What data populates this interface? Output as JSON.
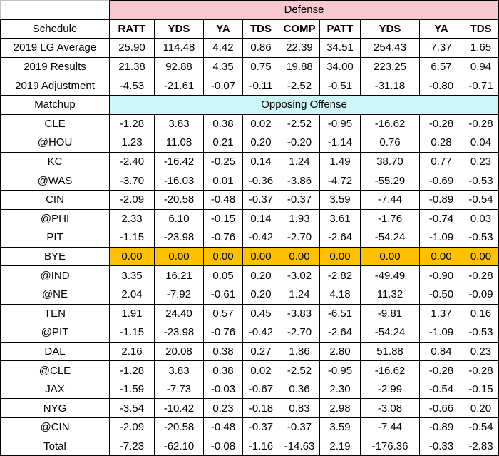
{
  "table": {
    "defense_label": "Defense",
    "schedule_label": "Schedule",
    "matchup_label": "Matchup",
    "opposing_label": "Opposing Offense",
    "columns": [
      "RATT",
      "YDS",
      "YA",
      "TDS",
      "COMP",
      "PATT",
      "YDS",
      "YA",
      "TDS"
    ],
    "summary_rows": [
      {
        "label": "2019 LG Average",
        "values": [
          "25.90",
          "114.48",
          "4.42",
          "0.86",
          "22.39",
          "34.51",
          "254.43",
          "7.37",
          "1.65"
        ]
      },
      {
        "label": "2019 Results",
        "values": [
          "21.38",
          "92.88",
          "4.35",
          "0.75",
          "19.88",
          "34.00",
          "223.25",
          "6.57",
          "0.94"
        ]
      },
      {
        "label": "2019 Adjustment",
        "values": [
          "-4.53",
          "-21.61",
          "-0.07",
          "-0.11",
          "-2.52",
          "-0.51",
          "-31.18",
          "-0.80",
          "-0.71"
        ]
      }
    ],
    "matchups": [
      {
        "label": "CLE",
        "values": [
          "-1.28",
          "3.83",
          "0.38",
          "0.02",
          "-2.52",
          "-0.95",
          "-16.62",
          "-0.28",
          "-0.28"
        ]
      },
      {
        "label": "@HOU",
        "values": [
          "1.23",
          "11.08",
          "0.21",
          "0.20",
          "-0.20",
          "-1.14",
          "0.76",
          "0.28",
          "0.04"
        ]
      },
      {
        "label": "KC",
        "values": [
          "-2.40",
          "-16.42",
          "-0.25",
          "0.14",
          "1.24",
          "1.49",
          "38.70",
          "0.77",
          "0.23"
        ]
      },
      {
        "label": "@WAS",
        "values": [
          "-3.70",
          "-16.03",
          "0.01",
          "-0.36",
          "-3.86",
          "-4.72",
          "-55.29",
          "-0.69",
          "-0.53"
        ]
      },
      {
        "label": "CIN",
        "values": [
          "-2.09",
          "-20.58",
          "-0.48",
          "-0.37",
          "-0.37",
          "3.59",
          "-7.44",
          "-0.89",
          "-0.54"
        ]
      },
      {
        "label": "@PHI",
        "values": [
          "2.33",
          "6.10",
          "-0.15",
          "0.14",
          "1.93",
          "3.61",
          "-1.76",
          "-0.74",
          "0.03"
        ]
      },
      {
        "label": "PIT",
        "values": [
          "-1.15",
          "-23.98",
          "-0.76",
          "-0.42",
          "-2.70",
          "-2.64",
          "-54.24",
          "-1.09",
          "-0.53"
        ]
      },
      {
        "label": "BYE",
        "values": [
          "0.00",
          "0.00",
          "0.00",
          "0.00",
          "0.00",
          "0.00",
          "0.00",
          "0.00",
          "0.00"
        ],
        "highlight": true
      },
      {
        "label": "@IND",
        "values": [
          "3.35",
          "16.21",
          "0.05",
          "0.20",
          "-3.02",
          "-2.82",
          "-49.49",
          "-0.90",
          "-0.28"
        ]
      },
      {
        "label": "@NE",
        "values": [
          "2.04",
          "-7.92",
          "-0.61",
          "0.20",
          "1.24",
          "4.18",
          "11.32",
          "-0.50",
          "-0.09"
        ]
      },
      {
        "label": "TEN",
        "values": [
          "1.91",
          "24.40",
          "0.57",
          "0.45",
          "-3.83",
          "-6.51",
          "-9.81",
          "1.37",
          "0.16"
        ]
      },
      {
        "label": "@PIT",
        "values": [
          "-1.15",
          "-23.98",
          "-0.76",
          "-0.42",
          "-2.70",
          "-2.64",
          "-54.24",
          "-1.09",
          "-0.53"
        ]
      },
      {
        "label": "DAL",
        "values": [
          "2.16",
          "20.08",
          "0.38",
          "0.27",
          "1.86",
          "2.80",
          "51.88",
          "0.84",
          "0.23"
        ]
      },
      {
        "label": "@CLE",
        "values": [
          "-1.28",
          "3.83",
          "0.38",
          "0.02",
          "-2.52",
          "-0.95",
          "-16.62",
          "-0.28",
          "-0.28"
        ]
      },
      {
        "label": "JAX",
        "values": [
          "-1.59",
          "-7.73",
          "-0.03",
          "-0.67",
          "0.36",
          "2.30",
          "-2.99",
          "-0.54",
          "-0.15"
        ]
      },
      {
        "label": "NYG",
        "values": [
          "-3.54",
          "-10.42",
          "0.23",
          "-0.18",
          "0.83",
          "2.98",
          "-3.08",
          "-0.66",
          "0.20"
        ]
      },
      {
        "label": "@CIN",
        "values": [
          "-2.09",
          "-20.58",
          "-0.48",
          "-0.37",
          "-0.37",
          "3.59",
          "-7.44",
          "-0.89",
          "-0.54"
        ]
      },
      {
        "label": "Total",
        "values": [
          "-7.23",
          "-62.10",
          "-0.08",
          "-1.16",
          "-14.63",
          "2.19",
          "-176.36",
          "-0.33",
          "-2.83"
        ]
      }
    ]
  },
  "colors": {
    "defense_band": "#f8c7cf",
    "opposing_band": "#cdf6f8",
    "bye_highlight": "#ffc000"
  }
}
